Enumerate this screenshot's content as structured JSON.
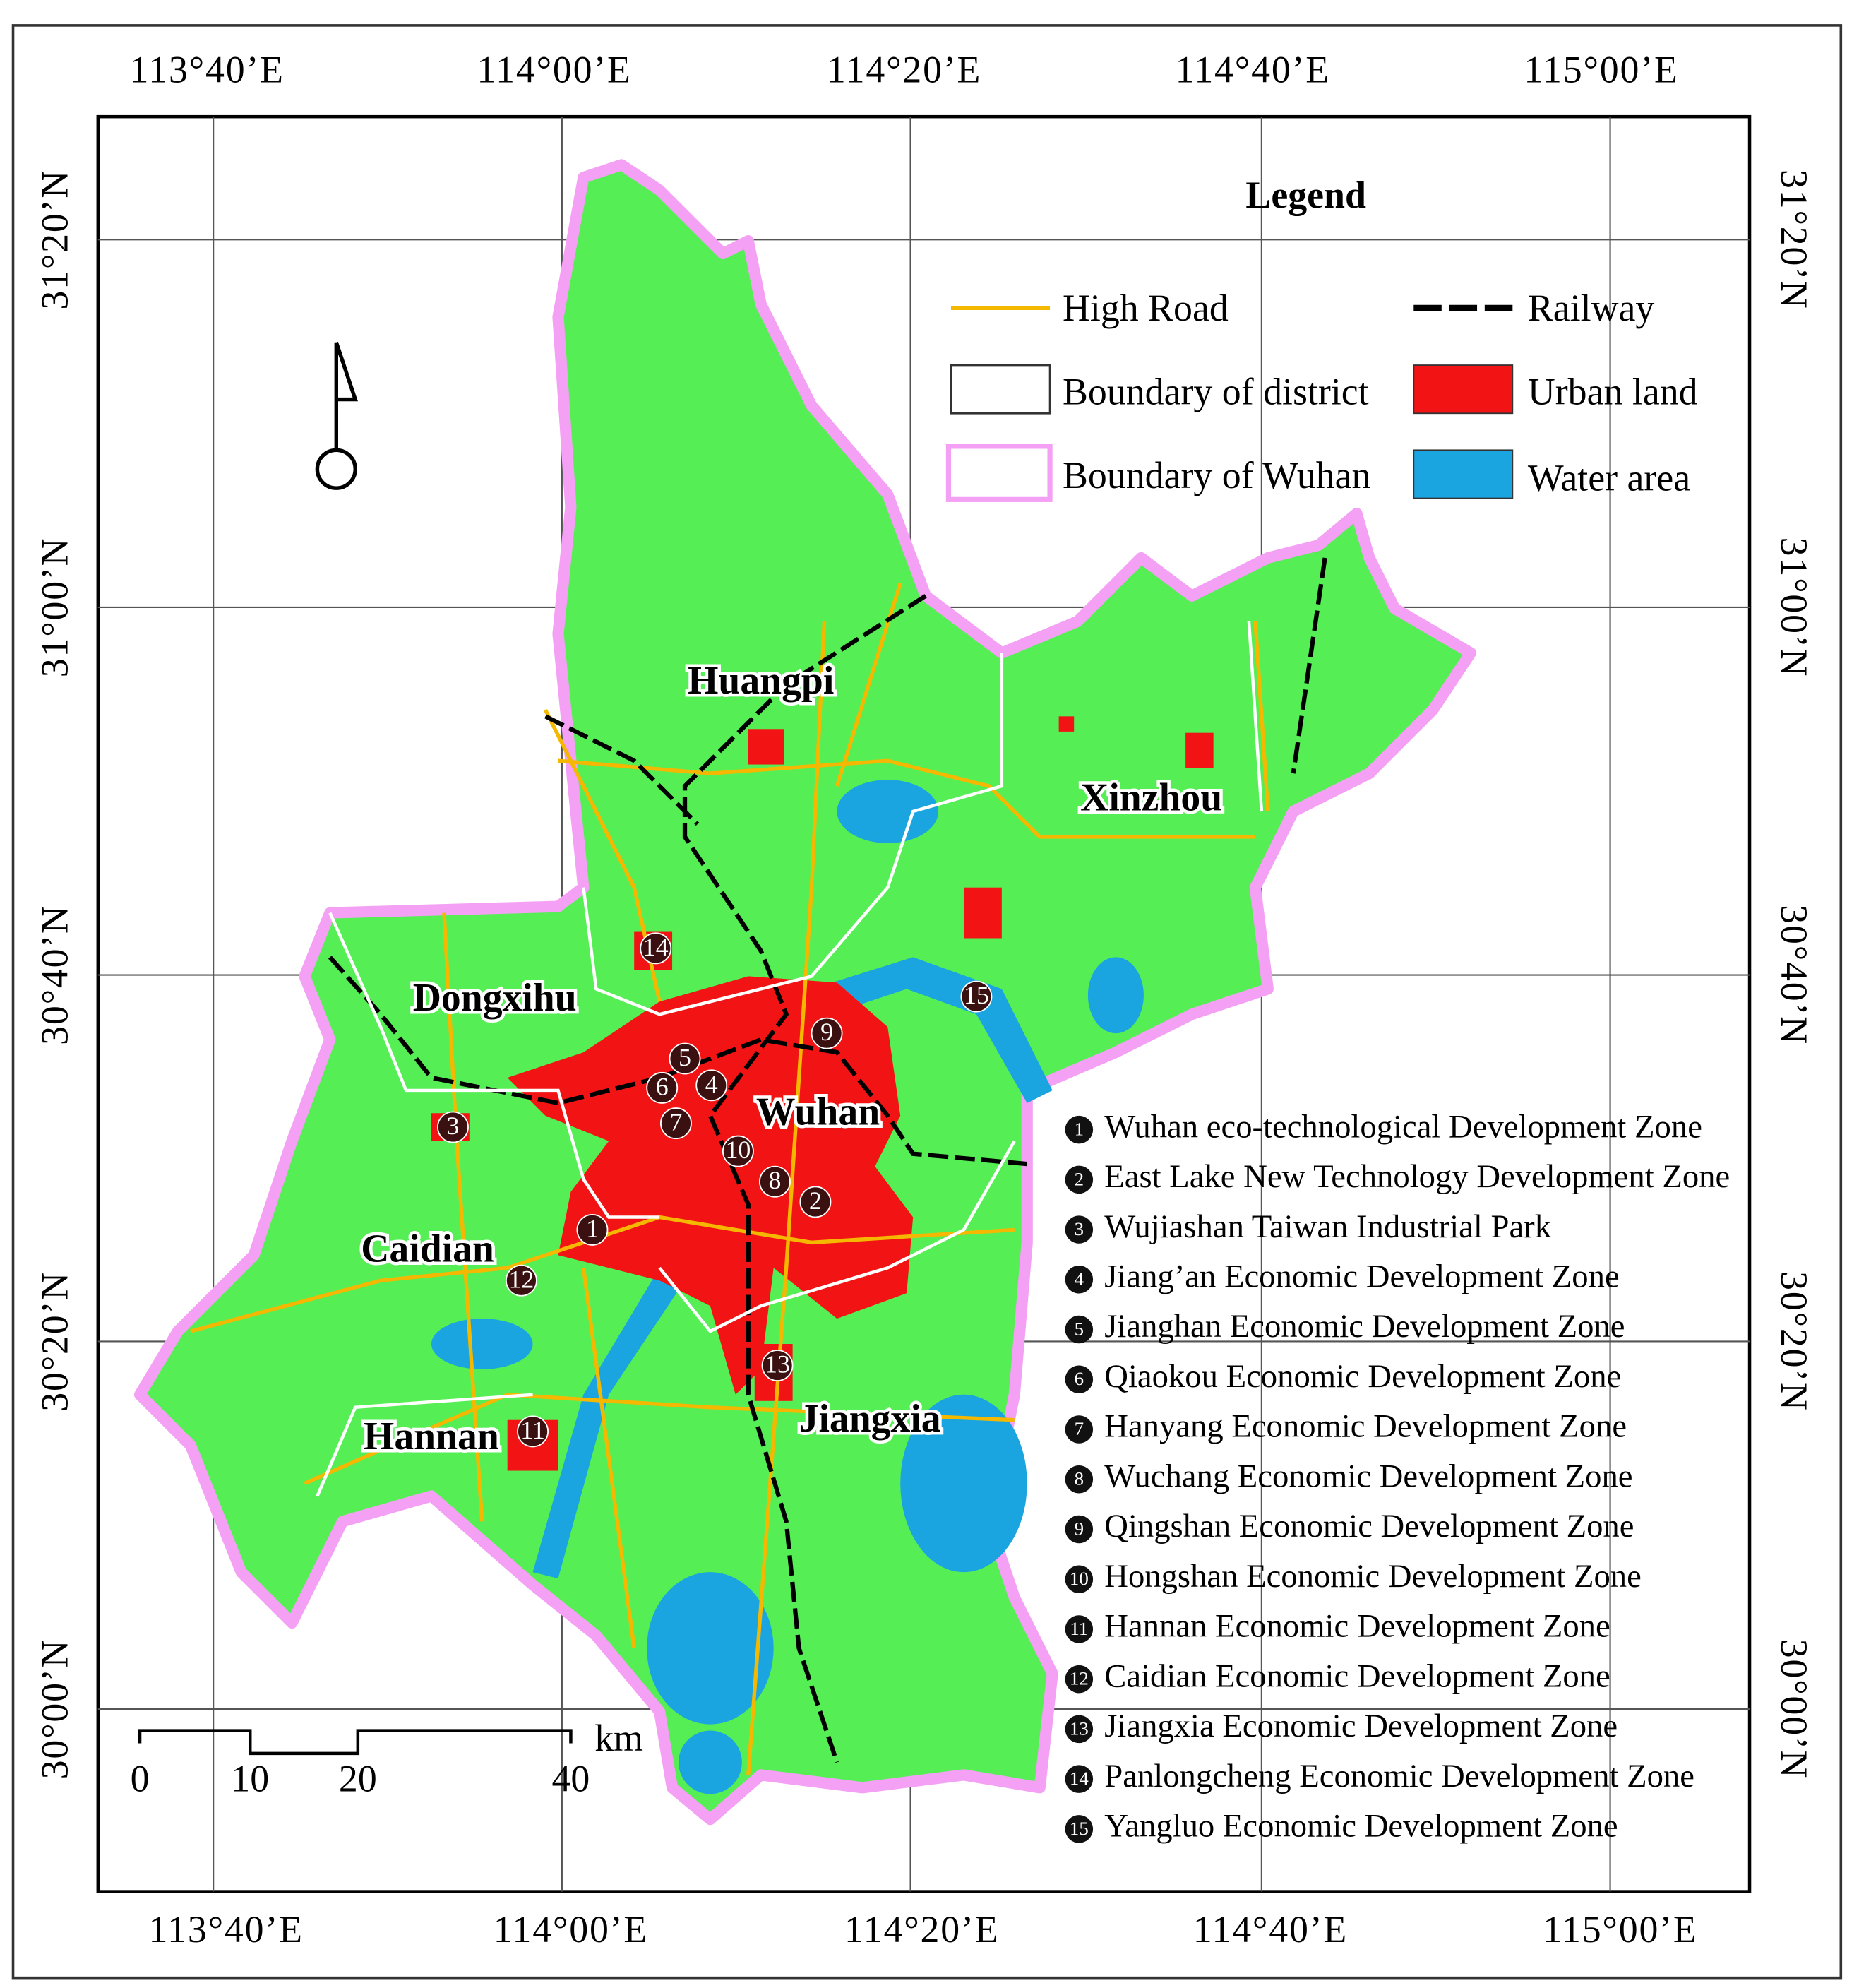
{
  "top_labels": [
    "113°40’E",
    "114°00’E",
    "114°20’E",
    "114°40’E",
    "115°00’E"
  ],
  "bottom_labels": [
    "113°40’E",
    "114°00’E",
    "114°20’E",
    "114°40’E",
    "115°00’E"
  ],
  "left_labels": [
    "31°20’N",
    "31°00’N",
    "30°40’N",
    "30°20’N",
    "30°00’N"
  ],
  "right_labels": [
    "31°20’N",
    "31°00’N",
    "30°40’N",
    "30°20’N",
    "30°00’N"
  ],
  "legend": {
    "title": "Legend",
    "items": [
      "High Road",
      "Railway",
      "Boundary of district",
      "Urban land",
      "Boundary of Wuhan",
      "Water area"
    ]
  },
  "districts": [
    "Huangpi",
    "Xinzhou",
    "Dongxihu",
    "Wuhan",
    "Caidian",
    "Hannan",
    "Jiangxia"
  ],
  "zones": [
    {
      "number": "1",
      "name": "Wuhan eco-technological Development Zone"
    },
    {
      "number": "2",
      "name": "East Lake New Technology Development Zone"
    },
    {
      "number": "3",
      "name": "Wujiashan Taiwan Industrial Park"
    },
    {
      "number": "4",
      "name": "Jiang’an Economic Development Zone"
    },
    {
      "number": "5",
      "name": "Jianghan Economic Development Zone"
    },
    {
      "number": "6",
      "name": "Qiaokou Economic Development Zone"
    },
    {
      "number": "7",
      "name": "Hanyang Economic Development Zone"
    },
    {
      "number": "8",
      "name": "Wuchang Economic Development Zone"
    },
    {
      "number": "9",
      "name": "Qingshan Economic Development Zone"
    },
    {
      "number": "10",
      "name": "Hongshan Economic Development Zone"
    },
    {
      "number": "11",
      "name": "Hannan Economic Development Zone"
    },
    {
      "number": "12",
      "name": "Caidian Economic Development Zone"
    },
    {
      "number": "13",
      "name": "Jiangxia Economic Development Zone"
    },
    {
      "number": "14",
      "name": "Panlongcheng Economic Development Zone"
    },
    {
      "number": "15",
      "name": "Yangluo Economic Development Zone"
    }
  ],
  "scale_bar": {
    "labels": [
      "0",
      "10",
      "20",
      "40"
    ],
    "unit": "km"
  }
}
